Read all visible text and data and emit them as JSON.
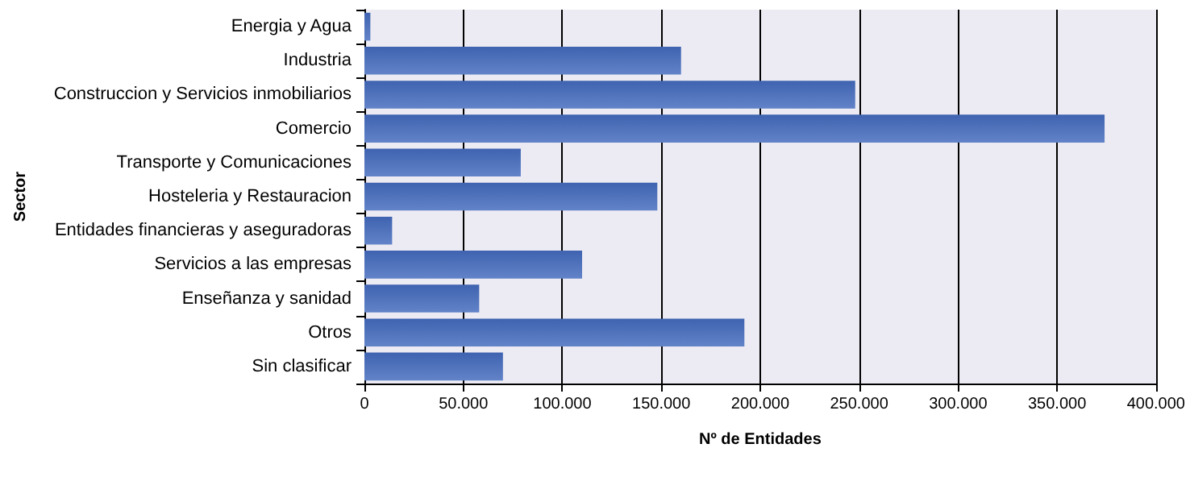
{
  "chart_data": {
    "type": "bar",
    "orientation": "horizontal",
    "xlabel": "Nº de Entidades",
    "ylabel": "Sector",
    "categories": [
      "Energia y Agua",
      "Industria",
      "Construccion y Servicios inmobiliarios",
      "Comercio",
      "Transporte y Comunicaciones",
      "Hosteleria y Restauracion",
      "Entidades financieras y aseguradoras",
      "Servicios a las empresas",
      "Enseñanza y sanidad",
      "Otros",
      "Sin clasificar"
    ],
    "values": [
      3000,
      160000,
      248000,
      374000,
      79000,
      148000,
      14000,
      110000,
      58000,
      192000,
      70000
    ],
    "color": "#6283c8",
    "xlim": [
      0,
      400000
    ],
    "xticks": [
      0,
      {
        "value": 50000,
        "label": "50.000"
      },
      {
        "value": 100000,
        "label": "100.000"
      },
      {
        "value": 150000,
        "label": "150.000"
      },
      {
        "value": 200000,
        "label": "200.000"
      },
      {
        "value": 250000,
        "label": "250.000"
      },
      {
        "value": 300000,
        "label": "300.000"
      },
      {
        "value": 350000,
        "label": "350.000"
      },
      {
        "value": 400000,
        "label": "400.000"
      }
    ],
    "grid": "x"
  }
}
